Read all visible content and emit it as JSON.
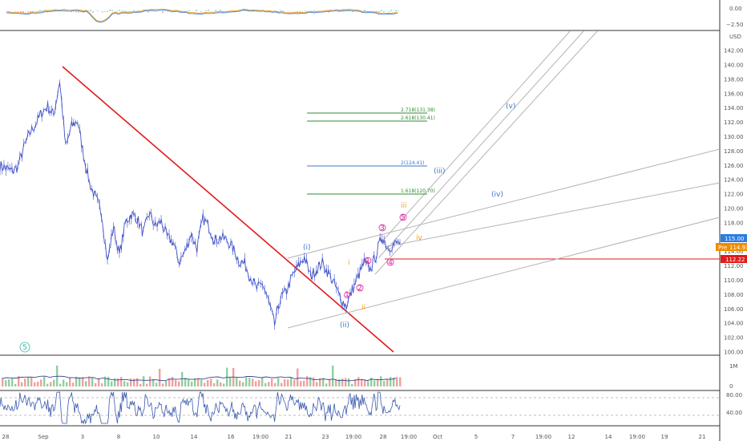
{
  "colors": {
    "price": "#3f51c8",
    "price_alt": "#5c8f5c",
    "trendline": "#e01b1b",
    "channel": "#b4b4b4",
    "fib_green": "#2e8b2e",
    "fib_blue": "#3a78c8",
    "wave_blue": "#3a78c8",
    "wave_pink": "#e020a0",
    "wave_orange": "#f0a020",
    "wave_teal": "#2bb8a8",
    "price_tag": "#2a7de1",
    "pre_tag": "#f08c00",
    "level_tag": "#e01b1b",
    "macd_red": "#e86060",
    "macd_teal": "#4ab8b0",
    "macd_orange": "#f0a020",
    "macd_blue": "#4a80d0",
    "volume_green": "#8fcfa0",
    "volume_red": "#f0a0a0",
    "volume_ma": "#3a4a8a",
    "rsi_line": "#3a5ab0"
  },
  "macd_panel": {
    "axis_labels": [
      "0.00",
      "−2.50"
    ]
  },
  "price_panel": {
    "currency": "USD",
    "y_ticks": [
      "142.00",
      "140.00",
      "138.00",
      "136.00",
      "134.00",
      "132.00",
      "130.00",
      "128.00",
      "126.00",
      "124.00",
      "122.00",
      "120.00",
      "118.00",
      "116.00",
      "114.00",
      "112.00",
      "110.00",
      "108.00",
      "106.00",
      "104.00",
      "102.00",
      "100.00"
    ],
    "price_tag": "115.00",
    "pre_label": "Pre",
    "pre_value": "114.93",
    "level_tag": "112.22"
  },
  "volume_panel": {
    "axis_labels": [
      "1M",
      "0"
    ]
  },
  "rsi_panel": {
    "axis_labels": [
      "80.00",
      "40.00"
    ]
  },
  "x_axis": {
    "labels": [
      "28",
      "Sep",
      "3",
      "8",
      "10",
      "14",
      "16",
      "19:00",
      "21",
      "23",
      "19:00",
      "28",
      "19:00",
      "Oct",
      "5",
      "7",
      "19:00",
      "12",
      "14",
      "19:00",
      "19",
      "21"
    ]
  },
  "fibs": [
    {
      "label": "2.718(131.38)",
      "color": "green"
    },
    {
      "label": "2.618(130.41)",
      "color": "green"
    },
    {
      "label": "2(124.41)",
      "color": "blue"
    },
    {
      "label": "1.618(120.70)",
      "color": "green"
    }
  ],
  "waves": [
    {
      "label": "(i)",
      "color": "blue"
    },
    {
      "label": "(ii)",
      "color": "blue"
    },
    {
      "label": "(iii)",
      "color": "blue"
    },
    {
      "label": "(iv)",
      "color": "blue"
    },
    {
      "label": "(v)",
      "color": "blue"
    },
    {
      "label": "i",
      "color": "orange"
    },
    {
      "label": "ii",
      "color": "orange"
    },
    {
      "label": "iii",
      "color": "orange"
    },
    {
      "label": "iv",
      "color": "orange"
    },
    {
      "label": "1",
      "color": "pink"
    },
    {
      "label": "2",
      "color": "pink"
    },
    {
      "label": "3",
      "color": "pink"
    },
    {
      "label": "4",
      "color": "pink"
    },
    {
      "label": "5",
      "color": "pink"
    },
    {
      "label": "1",
      "color": "pink"
    },
    {
      "label": "5",
      "color": "teal"
    }
  ],
  "chart_data": {
    "type": "line",
    "ylabel": "USD",
    "ylim": [
      99,
      143
    ],
    "annotations": [
      "2.718(131.38)",
      "2.618(130.41)",
      "2(124.41)",
      "1.618(120.70)",
      "(i)",
      "(ii)",
      "(iii)",
      "(iv)",
      "(v)"
    ],
    "series": [
      {
        "values": [
          126.0,
          125.6,
          125.2,
          125.8,
          128.5,
          130.5,
          131.8,
          133.4,
          134.2,
          133.0,
          137.8,
          128.5,
          131.5,
          132.2,
          127.5,
          123.5,
          121.5,
          119.5,
          112.5,
          117.5,
          113.5,
          118.0,
          119.2,
          118.6,
          116.5,
          119.4,
          117.5,
          118.2,
          116.0,
          115.3,
          112.5,
          114.0,
          116.5,
          114.5,
          118.6,
          117.5,
          115.5,
          116.0,
          115.6,
          114.5,
          112.7,
          112.3,
          110.4,
          108.8,
          109.5,
          107.0,
          103.8,
          107.5,
          108.5,
          110.6,
          112.0,
          113.2,
          110.6,
          111.5,
          112.4,
          111.0,
          109.5,
          107.5,
          106.4,
          108.6,
          110.5,
          112.5,
          111.5,
          113.5,
          116.2,
          114.5,
          115.0,
          115.3
        ]
      }
    ]
  }
}
